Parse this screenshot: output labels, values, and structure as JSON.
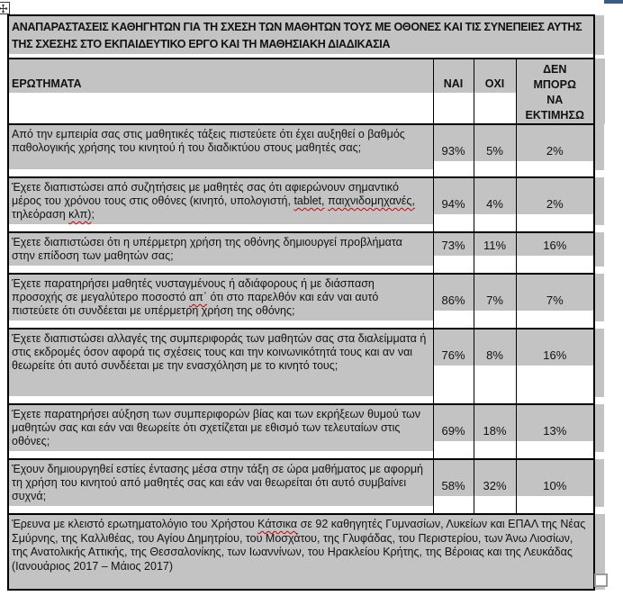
{
  "table": {
    "title": "ΑΝΑΠΑΡΑΣΤΑΣΕΙΣ ΚΑΘΗΓΗΤΩΝ ΓΙΑ ΤΗ ΣΧΕΣΗ ΤΩΝ ΜΑΘΗΤΩΝ ΤΟΥΣ ΜΕ ΟΘΟΝΕΣ ΚΑΙ ΤΙΣ ΣΥΝΕΠΕΙΕΣ ΑΥΤΗΣ ΤΗΣ ΣΧΕΣΗΣ ΣΤΟ ΕΚΠΑΙΔΕΥΤΙΚΟ ΕΡΓΟ ΚΑΙ ΤΗ ΜΑΘΗΣΙΑΚΗ ΔΙΑΔΙΚΑΣΙΑ",
    "headers": {
      "questions": "ΕΡΩΤΗΜΑΤΑ",
      "yes": "ΝΑΙ",
      "no": "ΟΧΙ",
      "cant_estimate": "ΔΕΝ\nΜΠΟΡΩ\nΝΑ\nΕΚΤΙΜΗΣΩ"
    },
    "rows": [
      {
        "question_parts": [
          {
            "t": "Από την εμπειρία σας στις μαθητικές τάξεις πιστεύετε ότι έχει αυξηθεί ο βαθμός παθολογικής χρήσης του κινητού ή του διαδικτύου στους μαθητές σας;",
            "m": false
          }
        ],
        "yes": "93%",
        "no": "5%",
        "cant": "2%",
        "lines": 3
      },
      {
        "question_parts": [
          {
            "t": "Έχετε διαπιστώσει από συζητήσεις με μαθητές σας ότι αφιερώνουν σημαντικό μέρος του χρόνου τους στις οθόνες (κινητό, υπολογιστή, ",
            "m": false
          },
          {
            "t": "tablet,",
            "m": true
          },
          {
            "t": " ",
            "m": false
          },
          {
            "t": "παιχνιδομηχανές,",
            "m": true
          },
          {
            "t": " τηλεόραση ",
            "m": false
          },
          {
            "t": "κλπ)",
            "m": true
          },
          {
            "t": ";",
            "m": false
          }
        ],
        "yes": "94%",
        "no": "4%",
        "cant": "2%",
        "lines": 3
      },
      {
        "question_parts": [
          {
            "t": "Έχετε διαπιστώσει ότι η υπέρμετρη χρήση της οθόνης δημιουργεί προβλήματα στην επίδοση των μαθητών σας;",
            "m": false
          }
        ],
        "yes": "73%",
        "no": "11%",
        "cant": "16%",
        "lines": 2
      },
      {
        "question_parts": [
          {
            "t": "Έχετε παρατηρήσει μαθητές νυσταγμένους ή αδιάφορους ή με διάσπαση προσοχής σε μεγαλύτερο ποσοστό ",
            "m": false
          },
          {
            "t": "απ΄",
            "m": true
          },
          {
            "t": " ότι στο παρελθόν και εάν ναι αυτό πιστεύετε ότι συνδέεται με υπέρμετρη χρήση της οθόνης;",
            "m": false
          }
        ],
        "yes": "86%",
        "no": "7%",
        "cant": "7%",
        "lines": 3
      },
      {
        "question_parts": [
          {
            "t": "Έχετε διαπιστώσει αλλαγές της συμπεριφοράς των μαθητών σας στα διαλείμματα ή στις εκδρομές όσον αφορά τις σχέσεις τους και την κοινωνικότητά τους και αν ναι θεωρείτε ότι αυτό συνδέεται με την ενασχόληση με το κινητό τους;",
            "m": false
          }
        ],
        "yes": "76%",
        "no": "8%",
        "cant": "16%",
        "lines": 4
      },
      {
        "question_parts": [
          {
            "t": "Έχετε παρατηρήσει αύξηση των συμπεριφορών βίας και των εκρήξεων θυμού των μαθητών σας και εάν ναι θεωρείτε ότι σχετίζεται με εθισμό των τελευταίων στις οθόνες;",
            "m": false
          }
        ],
        "yes": "69%",
        "no": "18%",
        "cant": "13%",
        "lines": 3
      },
      {
        "question_parts": [
          {
            "t": "Έχουν δημιουργηθεί εστίες έντασης μέσα στην τάξη σε ώρα μαθήματος με αφορμή τη χρήση του κινητού από μαθητές σας και εάν ναι θεωρείται ότι αυτό συμβαίνει συχνά;",
            "m": false
          }
        ],
        "yes": "58%",
        "no": "32%",
        "cant": "10%",
        "lines": 3
      }
    ],
    "source_note_parts": [
      {
        "t": "Έρευνα με κλειστό ερωτηματολόγιο του Χρήστου ",
        "m": false
      },
      {
        "t": "Κάτσικα",
        "m": true
      },
      {
        "t": " σε 92 καθηγητές Γυμνασίων, Λυκείων και ΕΠΑΛ της Νέας Σμύρνης, της Καλλιθέας, του Αγίου Δημητρίου, του Μοσχάτου, της Γλυφάδας, του Περιστερίου, των Άνω Λιοσίων, της Ανατολικής Αττικής, της Θεσσαλονίκης, των Ιωαννίνων, του Ηρακλείου Κρήτης, της Βέροιας και της Λευκάδας (Ιανουάριος 2017 – Μάιος 2017)",
        "m": false
      }
    ]
  },
  "colors": {
    "cell_shading": "#c3c3c3",
    "table_border": "#000000",
    "spellcheck_squiggle": "#cc0000",
    "corner_accent": "#3d5a82",
    "resize_handle_border": "#9a9a9a"
  },
  "icons": {
    "move_handle": "move-cross",
    "resize_handle": "resize-square"
  }
}
